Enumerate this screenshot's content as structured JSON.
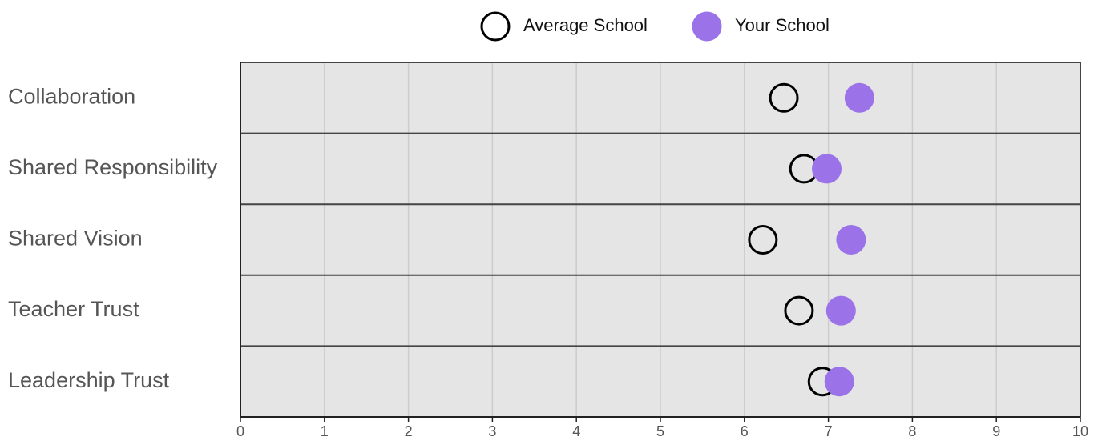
{
  "chart_data": {
    "type": "scatter",
    "title": "",
    "xlabel": "",
    "ylabel": "",
    "xlim": [
      0,
      10
    ],
    "xticks": [
      "0",
      "1",
      "2",
      "3",
      "4",
      "5",
      "6",
      "7",
      "8",
      "9",
      "10"
    ],
    "grid": true,
    "legend_position": "top",
    "categories": [
      "Collaboration",
      "Shared Responsibility",
      "Shared Vision",
      "Teacher Trust",
      "Leadership Trust"
    ],
    "series": [
      {
        "name": "Average School",
        "marker": "hollow-circle",
        "color": "#000000",
        "values": [
          6.47,
          6.71,
          6.22,
          6.65,
          6.93
        ]
      },
      {
        "name": "Your School",
        "marker": "filled-circle",
        "color": "#9b72e8",
        "values": [
          7.37,
          6.98,
          7.27,
          7.15,
          7.13
        ]
      }
    ]
  },
  "colors": {
    "panel_background": "#e5e5e5",
    "grid": "#cccccc",
    "row_divider": "#444444",
    "axis": "#222222"
  }
}
